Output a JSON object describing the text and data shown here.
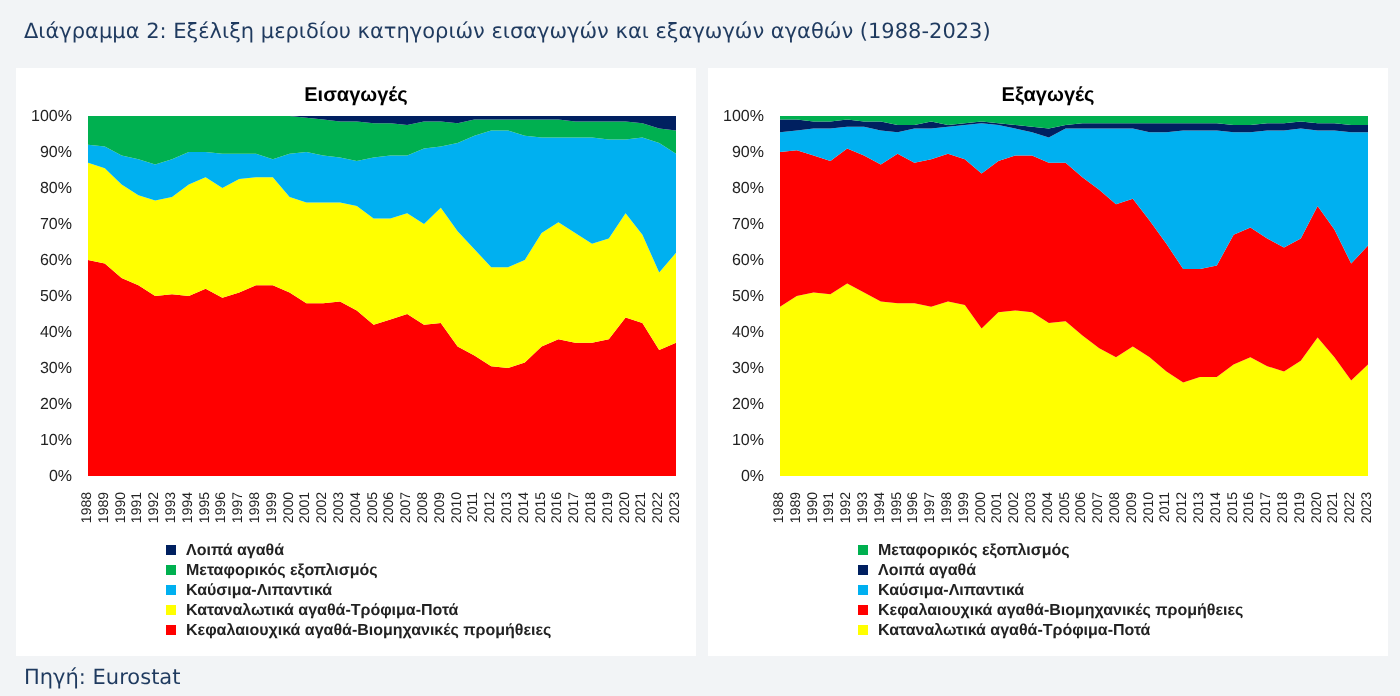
{
  "chart_data": [
    {
      "type": "area",
      "title": "Εισαγωγές",
      "stacked": true,
      "legend": "bottom",
      "annotations": [
        "Διάγραμμα 2: Εξέλιξη μεριδίου κατηγοριών εισαγωγών και εξαγωγών αγαθών (1988-2023)",
        "Πηγή: Eurostat"
      ],
      "categories": [
        "1988",
        "1989",
        "1990",
        "1991",
        "1992",
        "1993",
        "1994",
        "1995",
        "1996",
        "1997",
        "1998",
        "1999",
        "2000",
        "2001",
        "2002",
        "2003",
        "2004",
        "2005",
        "2006",
        "2007",
        "2008",
        "2009",
        "2010",
        "2011",
        "2012",
        "2013",
        "2014",
        "2015",
        "2016",
        "2017",
        "2018",
        "2019",
        "2020",
        "2021",
        "2022",
        "2023"
      ],
      "ylim": [
        0,
        100
      ],
      "yticks": [
        {
          "value": 0,
          "label": "0%"
        },
        {
          "value": 10,
          "label": "10%"
        },
        {
          "value": 20,
          "label": "20%"
        },
        {
          "value": 30,
          "label": "30%"
        },
        {
          "value": 40,
          "label": "40%"
        },
        {
          "value": 50,
          "label": "50%"
        },
        {
          "value": 60,
          "label": "60%"
        },
        {
          "value": 70,
          "label": "70%"
        },
        {
          "value": 80,
          "label": "80%"
        },
        {
          "value": 90,
          "label": "90%"
        },
        {
          "value": 100,
          "label": "100%"
        }
      ],
      "series": [
        {
          "name": "Κεφαλαιουχικά αγαθά-Βιομηχανικές προμήθειες",
          "color": "#ff0000",
          "values": [
            60,
            59,
            55,
            53,
            50,
            50.5,
            50,
            52,
            49.5,
            51,
            53,
            53,
            51,
            48,
            48,
            48.5,
            46,
            42,
            43.5,
            45,
            42,
            42.5,
            36,
            33.5,
            30.5,
            30,
            31.5,
            36,
            38,
            37,
            37,
            38,
            44,
            42.5,
            35,
            37
          ]
        },
        {
          "name": "Καταναλωτικά αγαθά-Τρόφιμα-Ποτά",
          "color": "#ffff00",
          "values": [
            27,
            26.5,
            26,
            25,
            26.5,
            27,
            31,
            31,
            30.5,
            31.5,
            30,
            30,
            26.5,
            28,
            28,
            27.5,
            29,
            29.5,
            28,
            28,
            28,
            32,
            32,
            29.5,
            27.5,
            28,
            28.5,
            31.5,
            32.5,
            30.5,
            27.5,
            28,
            29,
            24.5,
            21.5,
            25
          ]
        },
        {
          "name": "Καύσιμα-Λιπαντικά",
          "color": "#00b0f0",
          "values": [
            5,
            6,
            8,
            10,
            10,
            10.5,
            9,
            7,
            9.5,
            7,
            6.5,
            5,
            12,
            14,
            13,
            12.5,
            12.5,
            17,
            17.5,
            16,
            21,
            17,
            24.5,
            31.5,
            38,
            38,
            34.5,
            26.5,
            23.5,
            26.5,
            29.5,
            27.5,
            20.5,
            27,
            36,
            27.5
          ]
        },
        {
          "name": "Μεταφορικός εξοπλισμός",
          "color": "#00b050",
          "values": [
            8,
            8.5,
            11,
            12,
            13.5,
            12,
            10,
            10,
            10.5,
            10.5,
            10.5,
            12,
            10.5,
            9.5,
            10,
            10,
            11,
            9.5,
            9,
            8.5,
            7.5,
            7,
            5.5,
            4.5,
            3,
            3,
            4.5,
            5,
            5,
            4.5,
            4.5,
            5,
            5,
            4,
            4,
            6.5
          ]
        },
        {
          "name": "Λοιπά αγαθά",
          "color": "#002060",
          "values": [
            0,
            0,
            0,
            0,
            0,
            0,
            0,
            0,
            0,
            0,
            0,
            0,
            0,
            0.5,
            1,
            1.5,
            1.5,
            2,
            2,
            2.5,
            1.5,
            1.5,
            2,
            1,
            1,
            1,
            1,
            1,
            1,
            1.5,
            1.5,
            1.5,
            1.5,
            2,
            3.5,
            4
          ]
        }
      ]
    },
    {
      "type": "area",
      "title": "Εξαγωγές",
      "stacked": true,
      "legend": "bottom",
      "categories": [
        "1988",
        "1989",
        "1990",
        "1991",
        "1992",
        "1993",
        "1994",
        "1995",
        "1996",
        "1997",
        "1998",
        "1999",
        "2000",
        "2001",
        "2002",
        "2003",
        "2004",
        "2005",
        "2006",
        "2007",
        "2008",
        "2009",
        "2010",
        "2011",
        "2012",
        "2013",
        "2014",
        "2015",
        "2016",
        "2017",
        "2018",
        "2019",
        "2020",
        "2021",
        "2022",
        "2023"
      ],
      "ylim": [
        0,
        100
      ],
      "yticks": [
        {
          "value": 0,
          "label": "0%"
        },
        {
          "value": 10,
          "label": "10%"
        },
        {
          "value": 20,
          "label": "20%"
        },
        {
          "value": 30,
          "label": "30%"
        },
        {
          "value": 40,
          "label": "40%"
        },
        {
          "value": 50,
          "label": "50%"
        },
        {
          "value": 60,
          "label": "60%"
        },
        {
          "value": 70,
          "label": "70%"
        },
        {
          "value": 80,
          "label": "80%"
        },
        {
          "value": 90,
          "label": "90%"
        },
        {
          "value": 100,
          "label": "100%"
        }
      ],
      "series": [
        {
          "name": "Καταναλωτικά αγαθά-Τρόφιμα-Ποτά",
          "color": "#ffff00",
          "values": [
            47,
            50,
            51,
            50.5,
            53.5,
            51,
            48.5,
            48,
            48,
            47,
            48.5,
            47.5,
            41,
            45.5,
            46,
            45.5,
            42.5,
            43,
            39,
            35.5,
            33,
            36,
            33,
            29,
            26,
            27.5,
            27.5,
            31,
            33,
            30.5,
            29,
            32,
            38.5,
            33,
            26.5,
            31
          ]
        },
        {
          "name": "Κεφαλαιουχικά αγαθά-Βιομηχανικές προμήθειες",
          "color": "#ff0000",
          "values": [
            43,
            40.5,
            38,
            37,
            37.5,
            38,
            38,
            41.5,
            39,
            41,
            41,
            40.5,
            43,
            42,
            43,
            43.5,
            44.5,
            44,
            44,
            44,
            42.5,
            41,
            38,
            35.5,
            31.5,
            30,
            31,
            36,
            36,
            35.5,
            34.5,
            34,
            36.5,
            35.5,
            32.5,
            33
          ]
        },
        {
          "name": "Καύσιμα-Λιπαντικά",
          "color": "#00b0f0",
          "values": [
            5.5,
            5.5,
            7.5,
            9,
            6,
            8,
            9.5,
            6,
            9.5,
            8.5,
            7.5,
            9.5,
            14,
            10,
            7.5,
            6.5,
            7,
            9.5,
            13.5,
            17,
            21,
            19.5,
            24.5,
            31,
            38.5,
            38.5,
            37.5,
            28.5,
            26.5,
            30,
            32.5,
            30.5,
            21,
            27.5,
            36.5,
            31.5
          ]
        },
        {
          "name": "Λοιπά αγαθά",
          "color": "#002060",
          "values": [
            3.5,
            3,
            2,
            2,
            2,
            1.5,
            2.5,
            2,
            1,
            2,
            0.5,
            0.5,
            0.5,
            0.5,
            1,
            1.5,
            2.5,
            1,
            1.5,
            1.5,
            1.5,
            1.5,
            2.5,
            2.5,
            2,
            2,
            2,
            2,
            2,
            2,
            2,
            2,
            2,
            2,
            2,
            2
          ]
        },
        {
          "name": "Μεταφορικός εξοπλισμός",
          "color": "#00b050",
          "values": [
            1,
            1,
            1.5,
            1.5,
            1,
            1.5,
            1.5,
            2.5,
            2.5,
            1.5,
            2.5,
            2,
            1.5,
            2,
            2.5,
            3,
            3.5,
            2.5,
            2,
            2,
            2,
            2,
            2,
            2,
            2,
            2,
            2,
            2.5,
            2.5,
            2,
            2,
            1.5,
            2,
            2,
            2.5,
            2.5
          ]
        }
      ]
    }
  ]
}
